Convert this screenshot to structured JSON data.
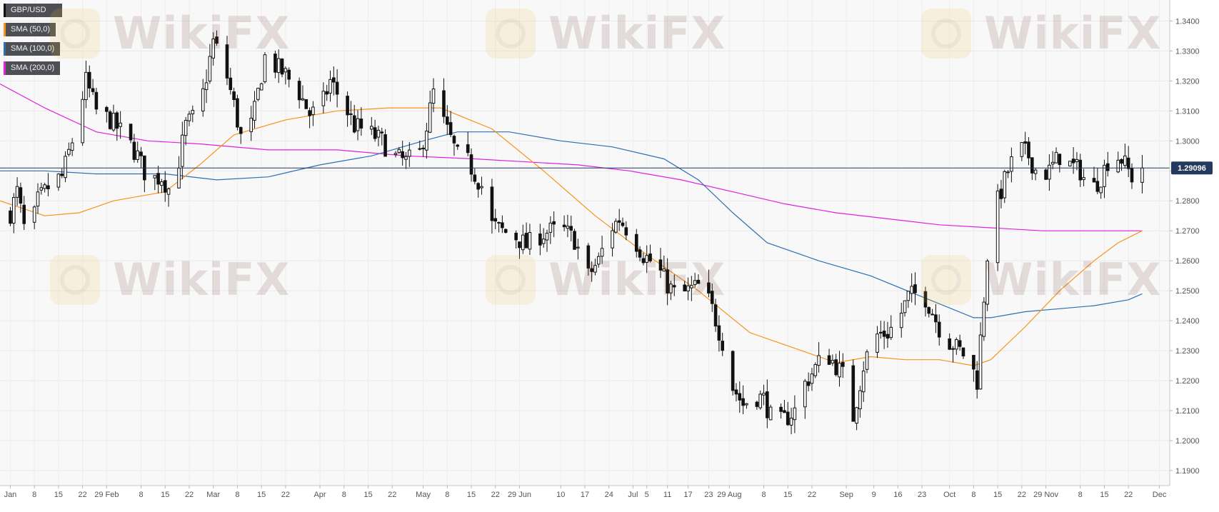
{
  "legend": [
    {
      "label": "GBP/USD",
      "color": "#111111"
    },
    {
      "label": "SMA (50,0)",
      "color": "#f7931a"
    },
    {
      "label": "SMA (100,0)",
      "color": "#2e6fb0"
    },
    {
      "label": "SMA (200,0)",
      "color": "#e020e0"
    }
  ],
  "watermark": "WikiFX",
  "chart_data": {
    "type": "candlestick",
    "series_name": "GBP/USD",
    "last_price": 1.29096,
    "last_price_label": "1.29096",
    "ylim": [
      1.185,
      1.347
    ],
    "yticks": [
      "1.3400",
      "1.3300",
      "1.3200",
      "1.3100",
      "1.3000",
      "1.2900",
      "1.2800",
      "1.2700",
      "1.2600",
      "1.2500",
      "1.2400",
      "1.2300",
      "1.2200",
      "1.2100",
      "1.2000",
      "1.1900"
    ],
    "ytick_values": [
      1.34,
      1.33,
      1.32,
      1.31,
      1.3,
      1.29,
      1.28,
      1.27,
      1.26,
      1.25,
      1.24,
      1.23,
      1.22,
      1.21,
      1.2,
      1.19
    ],
    "xticks": [
      {
        "label": "Jan",
        "day": 0
      },
      {
        "label": "8",
        "day": 7
      },
      {
        "label": "15",
        "day": 14
      },
      {
        "label": "22",
        "day": 21
      },
      {
        "label": "29 Feb",
        "day": 28
      },
      {
        "label": "8",
        "day": 38
      },
      {
        "label": "15",
        "day": 45
      },
      {
        "label": "22",
        "day": 52
      },
      {
        "label": "Mar",
        "day": 59
      },
      {
        "label": "8",
        "day": 66
      },
      {
        "label": "15",
        "day": 73
      },
      {
        "label": "22",
        "day": 80
      },
      {
        "label": "Apr",
        "day": 90
      },
      {
        "label": "8",
        "day": 97
      },
      {
        "label": "15",
        "day": 104
      },
      {
        "label": "22",
        "day": 111
      },
      {
        "label": "May",
        "day": 120
      },
      {
        "label": "8",
        "day": 127
      },
      {
        "label": "15",
        "day": 134
      },
      {
        "label": "22",
        "day": 141
      },
      {
        "label": "29 Jun",
        "day": 148
      },
      {
        "label": "10",
        "day": 160
      },
      {
        "label": "17",
        "day": 167
      },
      {
        "label": "24",
        "day": 174
      },
      {
        "label": "Jul",
        "day": 181
      },
      {
        "label": "5",
        "day": 185
      },
      {
        "label": "11",
        "day": 191
      },
      {
        "label": "17",
        "day": 197
      },
      {
        "label": "23",
        "day": 203
      },
      {
        "label": "29 Aug",
        "day": 209
      },
      {
        "label": "8",
        "day": 219
      },
      {
        "label": "15",
        "day": 226
      },
      {
        "label": "22",
        "day": 233
      },
      {
        "label": "Sep",
        "day": 243
      },
      {
        "label": "9",
        "day": 251
      },
      {
        "label": "16",
        "day": 258
      },
      {
        "label": "23",
        "day": 265
      },
      {
        "label": "Oct",
        "day": 273
      },
      {
        "label": "8",
        "day": 280
      },
      {
        "label": "15",
        "day": 287
      },
      {
        "label": "22",
        "day": 294
      },
      {
        "label": "29 Nov",
        "day": 301
      },
      {
        "label": "8",
        "day": 311
      },
      {
        "label": "15",
        "day": 318
      },
      {
        "label": "22",
        "day": 325
      },
      {
        "label": "Dec",
        "day": 334
      }
    ],
    "xlim_days": [
      -3,
      337
    ],
    "last_day": 329,
    "close_anchors": [
      [
        0,
        1.276
      ],
      [
        2,
        1.283
      ],
      [
        5,
        1.265
      ],
      [
        8,
        1.28
      ],
      [
        12,
        1.286
      ],
      [
        15,
        1.288
      ],
      [
        18,
        1.3
      ],
      [
        22,
        1.32
      ],
      [
        25,
        1.31
      ],
      [
        29,
        1.307
      ],
      [
        33,
        1.302
      ],
      [
        37,
        1.295
      ],
      [
        40,
        1.287
      ],
      [
        44,
        1.288
      ],
      [
        47,
        1.282
      ],
      [
        51,
        1.305
      ],
      [
        55,
        1.31
      ],
      [
        59,
        1.333
      ],
      [
        62,
        1.326
      ],
      [
        65,
        1.312
      ],
      [
        68,
        1.296
      ],
      [
        71,
        1.31
      ],
      [
        74,
        1.328
      ],
      [
        77,
        1.325
      ],
      [
        80,
        1.322
      ],
      [
        84,
        1.316
      ],
      [
        87,
        1.309
      ],
      [
        90,
        1.31
      ],
      [
        93,
        1.32
      ],
      [
        97,
        1.312
      ],
      [
        100,
        1.305
      ],
      [
        104,
        1.303
      ],
      [
        108,
        1.3
      ],
      [
        111,
        1.295
      ],
      [
        115,
        1.293
      ],
      [
        119,
        1.296
      ],
      [
        121,
        1.305
      ],
      [
        123,
        1.316
      ],
      [
        126,
        1.306
      ],
      [
        130,
        1.295
      ],
      [
        133,
        1.293
      ],
      [
        137,
        1.285
      ],
      [
        140,
        1.272
      ],
      [
        143,
        1.27
      ],
      [
        147,
        1.268
      ],
      [
        150,
        1.265
      ],
      [
        153,
        1.268
      ],
      [
        157,
        1.27
      ],
      [
        161,
        1.27
      ],
      [
        164,
        1.267
      ],
      [
        168,
        1.255
      ],
      [
        171,
        1.26
      ],
      [
        174,
        1.27
      ],
      [
        177,
        1.274
      ],
      [
        181,
        1.268
      ],
      [
        184,
        1.262
      ],
      [
        188,
        1.258
      ],
      [
        191,
        1.252
      ],
      [
        194,
        1.248
      ],
      [
        197,
        1.25
      ],
      [
        201,
        1.252
      ],
      [
        204,
        1.244
      ],
      [
        207,
        1.233
      ],
      [
        210,
        1.218
      ],
      [
        213,
        1.212
      ],
      [
        216,
        1.215
      ],
      [
        219,
        1.214
      ],
      [
        222,
        1.205
      ],
      [
        225,
        1.207
      ],
      [
        228,
        1.21
      ],
      [
        231,
        1.219
      ],
      [
        235,
        1.226
      ],
      [
        238,
        1.228
      ],
      [
        242,
        1.222
      ],
      [
        245,
        1.208
      ],
      [
        248,
        1.225
      ],
      [
        251,
        1.235
      ],
      [
        255,
        1.236
      ],
      [
        258,
        1.24
      ],
      [
        261,
        1.248
      ],
      [
        265,
        1.25
      ],
      [
        268,
        1.243
      ],
      [
        271,
        1.235
      ],
      [
        274,
        1.232
      ],
      [
        277,
        1.229
      ],
      [
        279,
        1.226
      ],
      [
        281,
        1.22
      ],
      [
        284,
        1.262
      ],
      [
        287,
        1.28
      ],
      [
        290,
        1.29
      ],
      [
        293,
        1.298
      ],
      [
        296,
        1.295
      ],
      [
        299,
        1.288
      ],
      [
        302,
        1.29
      ],
      [
        305,
        1.295
      ],
      [
        308,
        1.292
      ],
      [
        311,
        1.29
      ],
      [
        314,
        1.283
      ],
      [
        317,
        1.288
      ],
      [
        320,
        1.296
      ],
      [
        323,
        1.294
      ],
      [
        326,
        1.288
      ],
      [
        329,
        1.291
      ]
    ],
    "sma50": [
      [
        -3,
        1.28
      ],
      [
        10,
        1.275
      ],
      [
        20,
        1.276
      ],
      [
        30,
        1.28
      ],
      [
        45,
        1.283
      ],
      [
        55,
        1.292
      ],
      [
        65,
        1.302
      ],
      [
        80,
        1.307
      ],
      [
        95,
        1.31
      ],
      [
        110,
        1.311
      ],
      [
        125,
        1.311
      ],
      [
        140,
        1.304
      ],
      [
        155,
        1.29
      ],
      [
        170,
        1.275
      ],
      [
        185,
        1.262
      ],
      [
        200,
        1.25
      ],
      [
        215,
        1.236
      ],
      [
        230,
        1.23
      ],
      [
        240,
        1.226
      ],
      [
        250,
        1.228
      ],
      [
        260,
        1.227
      ],
      [
        270,
        1.227
      ],
      [
        280,
        1.225
      ],
      [
        285,
        1.227
      ],
      [
        295,
        1.238
      ],
      [
        305,
        1.25
      ],
      [
        315,
        1.26
      ],
      [
        322,
        1.266
      ],
      [
        329,
        1.27
      ]
    ],
    "sma100": [
      [
        -3,
        1.29
      ],
      [
        10,
        1.29
      ],
      [
        25,
        1.289
      ],
      [
        45,
        1.289
      ],
      [
        60,
        1.287
      ],
      [
        75,
        1.288
      ],
      [
        90,
        1.292
      ],
      [
        105,
        1.295
      ],
      [
        120,
        1.3
      ],
      [
        130,
        1.303
      ],
      [
        145,
        1.303
      ],
      [
        160,
        1.3
      ],
      [
        175,
        1.298
      ],
      [
        190,
        1.294
      ],
      [
        200,
        1.287
      ],
      [
        210,
        1.276
      ],
      [
        220,
        1.266
      ],
      [
        235,
        1.26
      ],
      [
        250,
        1.255
      ],
      [
        265,
        1.248
      ],
      [
        280,
        1.241
      ],
      [
        285,
        1.241
      ],
      [
        295,
        1.243
      ],
      [
        305,
        1.244
      ],
      [
        315,
        1.245
      ],
      [
        325,
        1.247
      ],
      [
        329,
        1.249
      ]
    ],
    "sma200": [
      [
        -3,
        1.319
      ],
      [
        10,
        1.311
      ],
      [
        25,
        1.303
      ],
      [
        40,
        1.3
      ],
      [
        55,
        1.299
      ],
      [
        75,
        1.297
      ],
      [
        95,
        1.297
      ],
      [
        115,
        1.295
      ],
      [
        135,
        1.294
      ],
      [
        150,
        1.293
      ],
      [
        165,
        1.292
      ],
      [
        180,
        1.29
      ],
      [
        195,
        1.287
      ],
      [
        210,
        1.283
      ],
      [
        225,
        1.279
      ],
      [
        240,
        1.276
      ],
      [
        255,
        1.274
      ],
      [
        270,
        1.272
      ],
      [
        285,
        1.271
      ],
      [
        300,
        1.27
      ],
      [
        315,
        1.27
      ],
      [
        329,
        1.27
      ]
    ]
  }
}
